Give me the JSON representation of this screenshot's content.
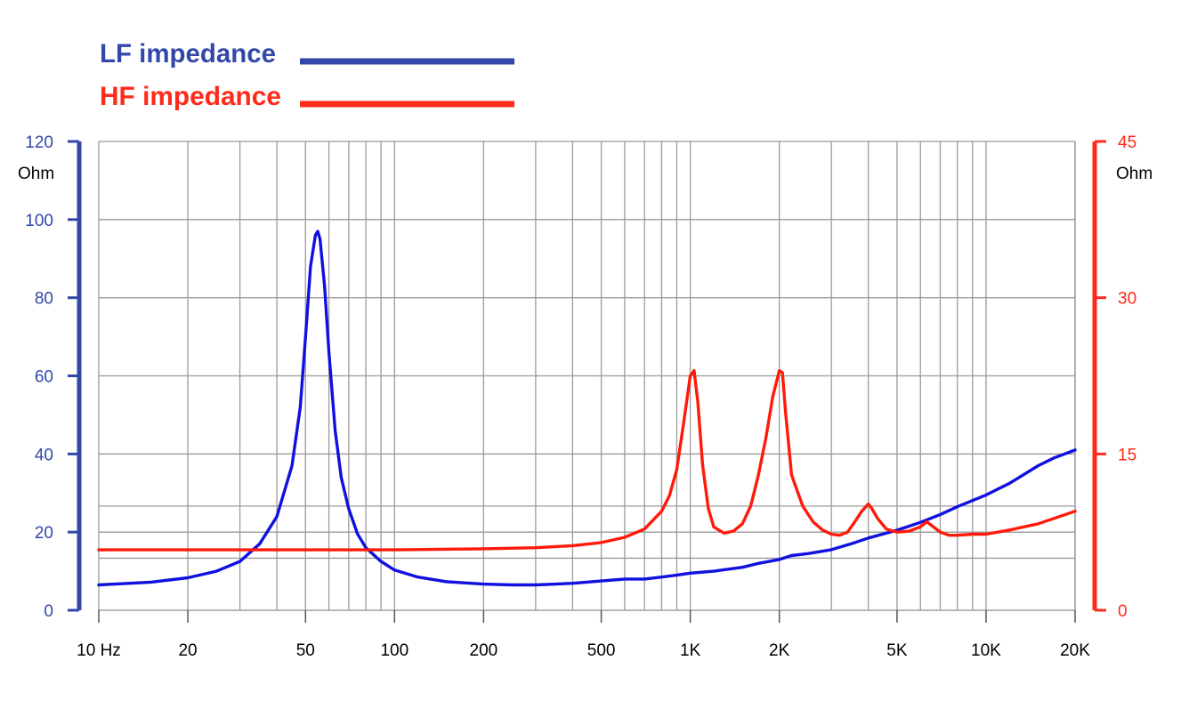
{
  "chart_data": {
    "type": "line",
    "x_scale": "log",
    "xlim": [
      10,
      20000
    ],
    "x_ticks": [
      10,
      20,
      50,
      100,
      200,
      500,
      1000,
      2000,
      5000,
      10000,
      20000
    ],
    "x_tick_labels": [
      "10 Hz",
      "20",
      "50",
      "100",
      "200",
      "500",
      "1K",
      "2K",
      "5K",
      "10K",
      "20K"
    ],
    "grid": true,
    "legend_position": "top-left",
    "left_axis": {
      "unit": "Ohm",
      "ylim": [
        0,
        120
      ],
      "ticks": [
        0,
        20,
        40,
        60,
        80,
        100,
        120
      ],
      "color": "#3347a8"
    },
    "right_axis": {
      "unit": "Ohm",
      "ylim": [
        0,
        45
      ],
      "ticks": [
        0,
        15,
        30,
        45
      ],
      "color": "#ff2a1a"
    },
    "series": [
      {
        "name": "LF impedance",
        "color": "#1010e0",
        "axis": "left",
        "x": [
          10,
          15,
          20,
          25,
          30,
          35,
          40,
          45,
          48,
          50,
          52,
          54,
          55,
          56,
          58,
          60,
          63,
          66,
          70,
          75,
          80,
          90,
          100,
          120,
          150,
          200,
          250,
          300,
          400,
          500,
          600,
          700,
          800,
          900,
          1000,
          1200,
          1500,
          1700,
          2000,
          2200,
          2500,
          3000,
          3500,
          4000,
          5000,
          6000,
          7000,
          8000,
          10000,
          12000,
          15000,
          17000,
          20000
        ],
        "y": [
          6.5,
          7.2,
          8.3,
          10,
          12.5,
          17,
          24,
          37,
          52,
          70,
          88,
          96,
          97,
          95,
          83,
          66,
          46,
          34,
          26,
          19.5,
          16,
          12.5,
          10.3,
          8.5,
          7.3,
          6.7,
          6.5,
          6.5,
          6.9,
          7.5,
          8,
          8,
          8.5,
          9,
          9.5,
          10,
          11,
          12,
          13,
          14,
          14.5,
          15.5,
          17,
          18.5,
          20.5,
          22.5,
          24.5,
          26.5,
          29.5,
          32.5,
          37,
          39,
          41
        ]
      },
      {
        "name": "HF impedance",
        "color": "#ff1a0a",
        "axis": "right",
        "x": [
          10,
          50,
          100,
          200,
          300,
          400,
          500,
          600,
          700,
          800,
          850,
          900,
          950,
          1000,
          1030,
          1060,
          1100,
          1150,
          1200,
          1300,
          1400,
          1500,
          1600,
          1700,
          1800,
          1900,
          2000,
          2050,
          2100,
          2200,
          2400,
          2600,
          2800,
          3000,
          3200,
          3400,
          3600,
          3800,
          4000,
          4100,
          4300,
          4600,
          5000,
          5500,
          6000,
          6300,
          7000,
          7500,
          8000,
          9000,
          10000,
          12000,
          15000,
          20000
        ],
        "y": [
          5.8,
          5.8,
          5.8,
          5.9,
          6,
          6.2,
          6.5,
          7,
          7.8,
          9.5,
          11,
          13.5,
          18,
          22.5,
          23,
          20,
          14,
          9.8,
          8,
          7.4,
          7.6,
          8.3,
          10,
          13,
          16.5,
          20.5,
          23,
          22.8,
          19,
          13,
          10,
          8.5,
          7.7,
          7.3,
          7.2,
          7.5,
          8.5,
          9.5,
          10.2,
          9.8,
          8.8,
          7.8,
          7.5,
          7.6,
          8,
          8.5,
          7.5,
          7.2,
          7.2,
          7.3,
          7.3,
          7.7,
          8.3,
          9.5
        ]
      }
    ]
  }
}
